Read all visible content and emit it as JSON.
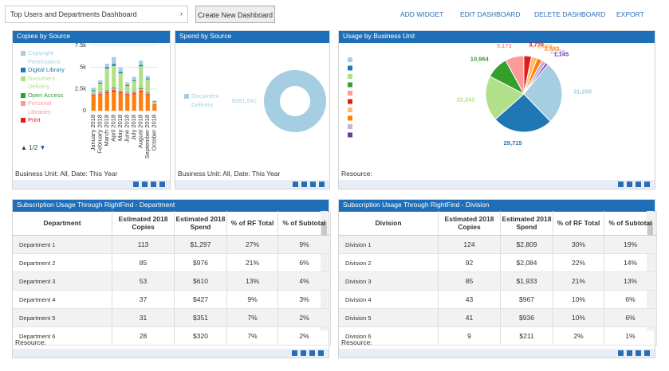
{
  "header": {
    "dashboard_select": "Top Users and Departments Dashboard",
    "create_button": "Create New Dashboard",
    "actions": [
      "ADD WIDGET",
      "EDIT DASHBOARD",
      "DELETE DASHBOARD",
      "EXPORT"
    ]
  },
  "copies": {
    "title": "Copies by Source",
    "pager": "1/2",
    "footer": "Business Unit: All, Date: This Year",
    "chart_data": {
      "type": "bar",
      "stacked": true,
      "categories": [
        "January 2018",
        "February 2018",
        "March 2018",
        "April 2018",
        "May 2018",
        "June 2018",
        "July 2018",
        "August 2018",
        "September 2018",
        "October 2018"
      ],
      "ylim": [
        0,
        7500
      ],
      "yticks": [
        0,
        {
          "value": 2500,
          "label": "2.5k"
        },
        {
          "value": 5000,
          "label": "5k"
        },
        {
          "value": 7500,
          "label": "7.5k"
        }
      ],
      "series": [
        {
          "color": "#ff7f0e",
          "values": [
            1700,
            1800,
            2000,
            2200,
            2000,
            1800,
            1900,
            2200,
            1800,
            700
          ]
        },
        {
          "name": "Print",
          "color": "#e31a1c",
          "values": [
            100,
            100,
            100,
            150,
            100,
            100,
            100,
            100,
            100,
            50
          ]
        },
        {
          "name": "Personal Libraries",
          "color": "#fb9a99",
          "values": [
            100,
            150,
            150,
            200,
            150,
            100,
            150,
            200,
            150,
            50
          ]
        },
        {
          "name": "Open Access",
          "color": "#33a02c",
          "values": [
            50,
            50,
            100,
            100,
            50,
            50,
            50,
            100,
            50,
            0
          ]
        },
        {
          "name": "Document Delivery",
          "color": "#b2df8a",
          "values": [
            300,
            1000,
            2500,
            2500,
            2000,
            800,
            1200,
            2500,
            1500,
            200
          ]
        },
        {
          "name": "Digital Library",
          "color": "#1f78b4",
          "values": [
            100,
            100,
            150,
            200,
            150,
            100,
            100,
            150,
            100,
            50
          ]
        },
        {
          "name": "Copyright Permissions",
          "color": "#a6cee3",
          "values": [
            300,
            300,
            400,
            800,
            500,
            300,
            400,
            500,
            300,
            100
          ]
        }
      ]
    }
  },
  "spend": {
    "title": "Spend by Source",
    "footer": "Business Unit: All, Date: This Year",
    "chart_data": {
      "type": "donut",
      "series": [
        {
          "name": "Document Delivery",
          "color": "#a6cee3",
          "values": [
            381942
          ],
          "value_labels": [
            "$381,942"
          ]
        }
      ]
    }
  },
  "usage": {
    "title": "Usage by Business Unit",
    "footer": "Resource:",
    "chart_data": {
      "type": "pie",
      "values": [
        31258,
        29715,
        22242,
        10964,
        9173,
        3739,
        2869,
        2583,
        2236,
        1145
      ],
      "value_labels": [
        "31,258",
        "29,715",
        "22,242",
        "10,964",
        "9,173",
        "3,739",
        "2,869",
        "2,583",
        "2,236",
        "1,145"
      ],
      "colors": [
        "#a6cee3",
        "#1f78b4",
        "#b2df8a",
        "#33a02c",
        "#fb9a99",
        "#e31a1c",
        "#fdbf6f",
        "#ff7f00",
        "#cab2d6",
        "#6a3d9a"
      ]
    }
  },
  "dept_table": {
    "title": "Subscription Usage Through RightFind - Department",
    "footer": "Resource:",
    "columns": [
      "Department",
      "Estimated 2018 Copies",
      "Estimated 2018 Spend",
      "% of RF Total",
      "% of Subtotal"
    ],
    "rows": [
      [
        "Department 1",
        "113",
        "$1,297",
        "27%",
        "9%"
      ],
      [
        "Department 2",
        "85",
        "$976",
        "21%",
        "6%"
      ],
      [
        "Department 3",
        "53",
        "$610",
        "13%",
        "4%"
      ],
      [
        "Department 4",
        "37",
        "$427",
        "9%",
        "3%"
      ],
      [
        "Department 5",
        "31",
        "$351",
        "7%",
        "2%"
      ],
      [
        "Department 6",
        "28",
        "$320",
        "7%",
        "2%"
      ]
    ]
  },
  "div_table": {
    "title": "Subscription Usage Through RightFind - Division",
    "footer": "Resource:",
    "columns": [
      "Division",
      "Estimated 2018 Copies",
      "Estimated 2018 Spend",
      "% of RF Total",
      "% of Subtotal"
    ],
    "rows": [
      [
        "Division 1",
        "124",
        "$2,809",
        "30%",
        "19%"
      ],
      [
        "Division 2",
        "92",
        "$2,084",
        "22%",
        "14%"
      ],
      [
        "Division 3",
        "85",
        "$1,933",
        "21%",
        "13%"
      ],
      [
        "Division 4",
        "43",
        "$967",
        "10%",
        "6%"
      ],
      [
        "Division 5",
        "41",
        "$936",
        "10%",
        "6%"
      ],
      [
        "Division 6",
        "9",
        "$211",
        "2%",
        "1%"
      ]
    ]
  }
}
